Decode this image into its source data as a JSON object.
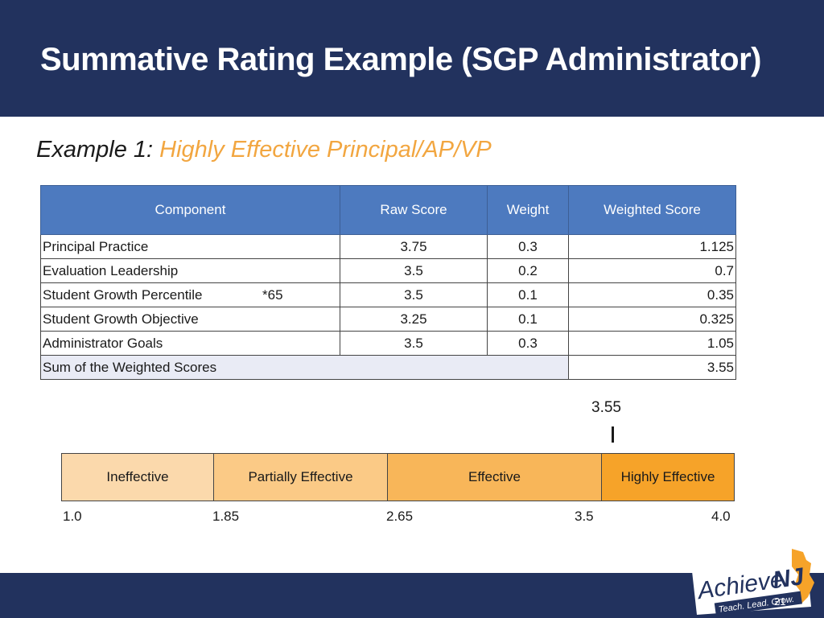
{
  "slide": {
    "title": "Summative Rating Example (SGP Administrator)",
    "subtitle_prefix": "Example 1: ",
    "subtitle_accent": "Highly Effective Principal/AP/VP",
    "page_number": "21"
  },
  "colors": {
    "navy": "#22325e",
    "table_header": "#4d7abf",
    "accent_orange": "#f2a640"
  },
  "table": {
    "headers": [
      "Component",
      "Raw Score",
      "Weight",
      "Weighted Score"
    ],
    "rows": [
      {
        "component": "Principal Practice",
        "note": "",
        "raw": "3.75",
        "weight": "0.3",
        "weighted": "1.125"
      },
      {
        "component": "Evaluation Leadership",
        "note": "",
        "raw": "3.5",
        "weight": "0.2",
        "weighted": "0.7"
      },
      {
        "component": "Student Growth Percentile",
        "note": "*65",
        "raw": "3.5",
        "weight": "0.1",
        "weighted": "0.35"
      },
      {
        "component": "Student Growth Objective",
        "note": "",
        "raw": "3.25",
        "weight": "0.1",
        "weighted": "0.325"
      },
      {
        "component": "Administrator Goals",
        "note": "",
        "raw": "3.5",
        "weight": "0.3",
        "weighted": "1.05"
      }
    ],
    "sum_label": "Sum of the Weighted Scores",
    "sum_value": "3.55"
  },
  "scale": {
    "marker_label": "3.55",
    "marker_value": 3.55,
    "segments": [
      "Ineffective",
      "Partially Effective",
      "Effective",
      "Highly Effective"
    ],
    "ticks": [
      "1.0",
      "1.85",
      "2.65",
      "3.5",
      "4.0"
    ]
  },
  "logo": {
    "wordmark_left": "Achieve",
    "wordmark_right": "NJ",
    "tagline": "Teach. Lead. Grow.",
    "icon": "new-jersey-state-shape"
  }
}
